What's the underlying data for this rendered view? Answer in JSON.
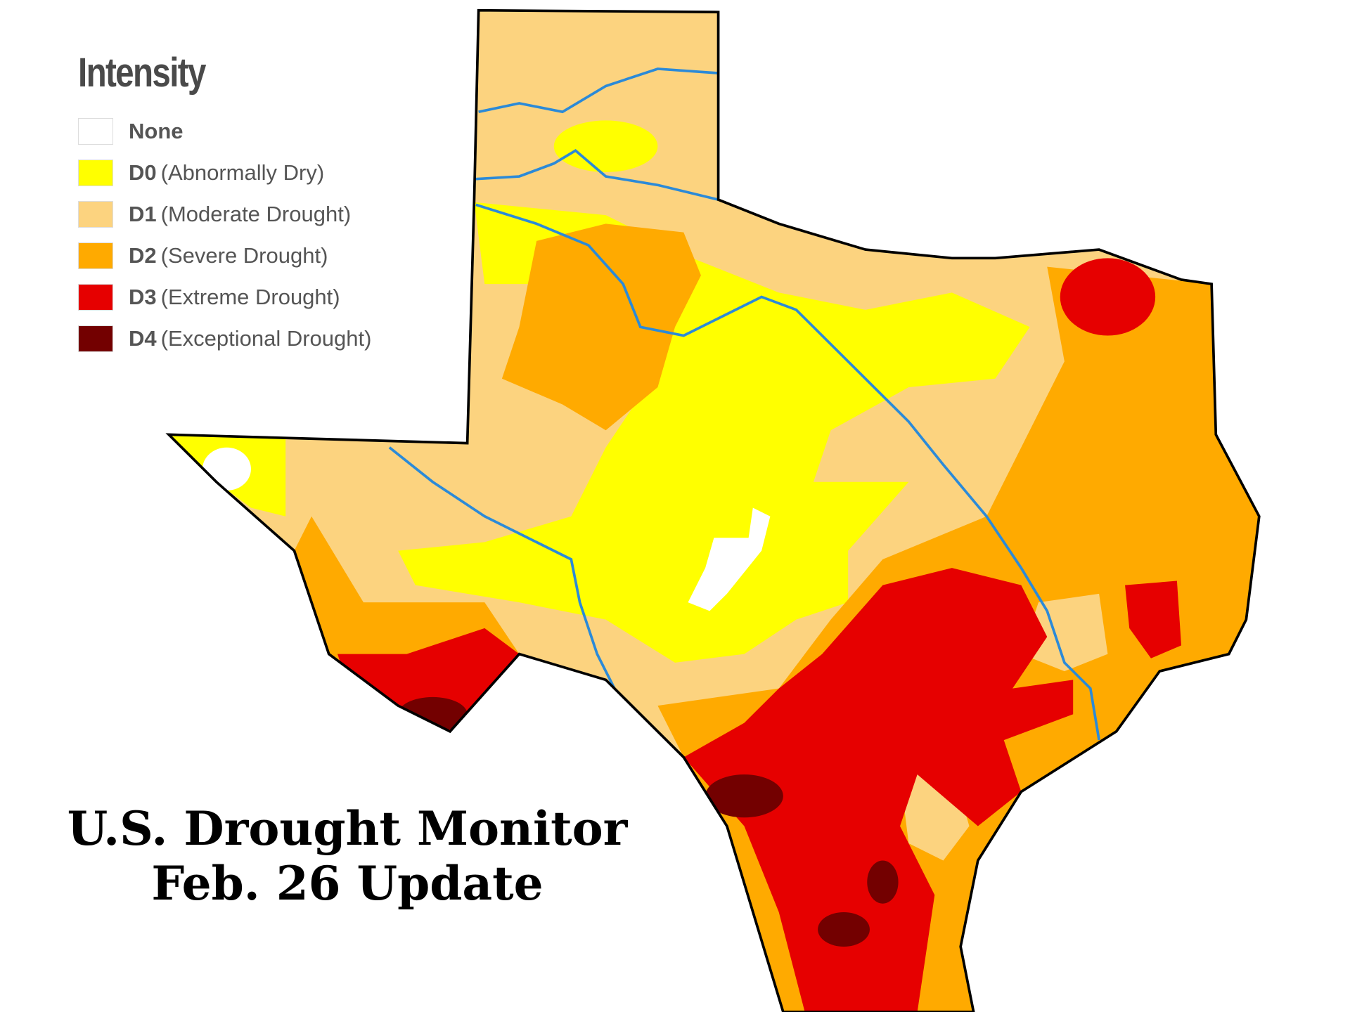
{
  "legend": {
    "title": "Intensity",
    "items": [
      {
        "label": "None",
        "color": "#ffffff"
      },
      {
        "code": "D0",
        "description": "(Abnormally Dry)",
        "color": "#ffff00"
      },
      {
        "code": "D1",
        "description": "(Moderate Drought)",
        "color": "#fcd37f"
      },
      {
        "code": "D2",
        "description": "(Severe Drought)",
        "color": "#ffaa00"
      },
      {
        "code": "D3",
        "description": "(Extreme Drought)",
        "color": "#e60000"
      },
      {
        "code": "D4",
        "description": "(Exceptional Drought)",
        "color": "#730000"
      }
    ]
  },
  "caption": {
    "lines": [
      "U.S. Drought Monitor",
      "Feb. 26 Update"
    ]
  }
}
